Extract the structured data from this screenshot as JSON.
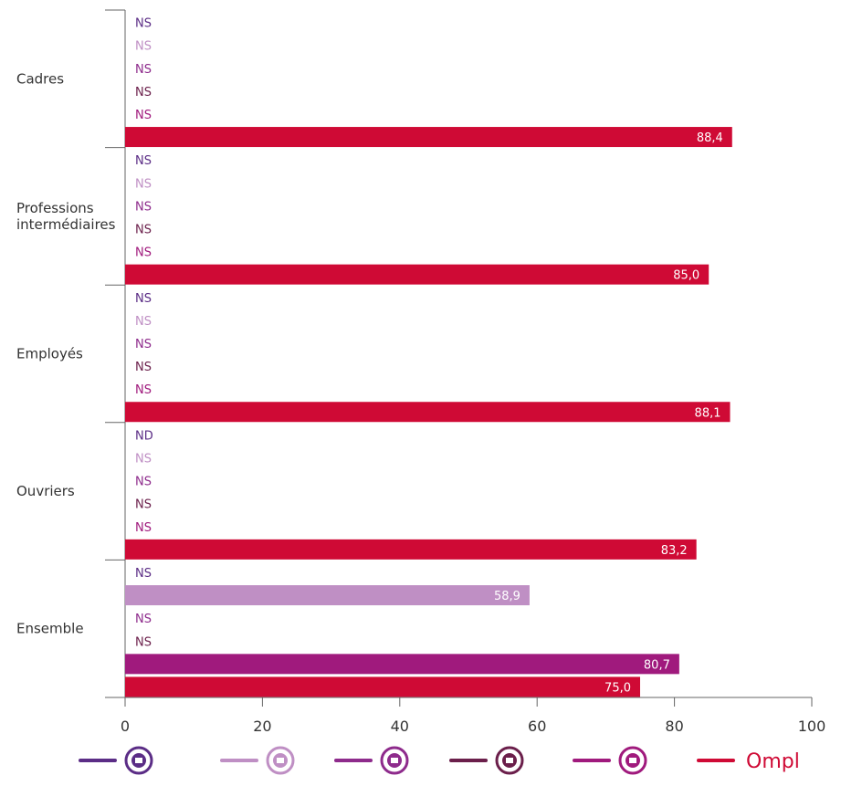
{
  "chart_data": {
    "type": "bar",
    "orientation": "horizontal",
    "xlim": [
      0,
      100
    ],
    "xticks": [
      "0",
      "20",
      "40",
      "60",
      "80",
      "100"
    ],
    "categories": [
      {
        "label": [
          "Cadres"
        ],
        "bars": [
          {
            "series": 0,
            "value": null,
            "text": "NS"
          },
          {
            "series": 1,
            "value": null,
            "text": "NS"
          },
          {
            "series": 2,
            "value": null,
            "text": "NS"
          },
          {
            "series": 3,
            "value": null,
            "text": "NS"
          },
          {
            "series": 4,
            "value": null,
            "text": "NS"
          },
          {
            "series": 5,
            "value": 88.4,
            "text": "88,4"
          }
        ]
      },
      {
        "label": [
          "Professions",
          "intermédiaires"
        ],
        "bars": [
          {
            "series": 0,
            "value": null,
            "text": "NS"
          },
          {
            "series": 1,
            "value": null,
            "text": "NS"
          },
          {
            "series": 2,
            "value": null,
            "text": "NS"
          },
          {
            "series": 3,
            "value": null,
            "text": "NS"
          },
          {
            "series": 4,
            "value": null,
            "text": "NS"
          },
          {
            "series": 5,
            "value": 85.0,
            "text": "85,0"
          }
        ]
      },
      {
        "label": [
          "Employés"
        ],
        "bars": [
          {
            "series": 0,
            "value": null,
            "text": "NS"
          },
          {
            "series": 1,
            "value": null,
            "text": "NS"
          },
          {
            "series": 2,
            "value": null,
            "text": "NS"
          },
          {
            "series": 3,
            "value": null,
            "text": "NS"
          },
          {
            "series": 4,
            "value": null,
            "text": "NS"
          },
          {
            "series": 5,
            "value": 88.1,
            "text": "88,1"
          }
        ]
      },
      {
        "label": [
          "Ouvriers"
        ],
        "bars": [
          {
            "series": 0,
            "value": null,
            "text": "ND"
          },
          {
            "series": 1,
            "value": null,
            "text": "NS"
          },
          {
            "series": 2,
            "value": null,
            "text": "NS"
          },
          {
            "series": 3,
            "value": null,
            "text": "NS"
          },
          {
            "series": 4,
            "value": null,
            "text": "NS"
          },
          {
            "series": 5,
            "value": 83.2,
            "text": "83,2"
          }
        ]
      },
      {
        "label": [
          "Ensemble"
        ],
        "bars": [
          {
            "series": 0,
            "value": null,
            "text": "NS"
          },
          {
            "series": 1,
            "value": 58.9,
            "text": "58,9"
          },
          {
            "series": 2,
            "value": null,
            "text": "NS"
          },
          {
            "series": 3,
            "value": null,
            "text": "NS"
          },
          {
            "series": 4,
            "value": 80.7,
            "text": "80,7"
          },
          {
            "series": 5,
            "value": 75.0,
            "text": "75,0"
          }
        ]
      }
    ],
    "series": [
      {
        "color": "#5b2d86",
        "icon": "bank-icon"
      },
      {
        "color": "#bf8fc4",
        "icon": "person-icon"
      },
      {
        "color": "#8e2b8c",
        "icon": "gavel-icon"
      },
      {
        "color": "#6b1f4b",
        "icon": "microscope-icon"
      },
      {
        "color": "#a01a7d",
        "icon": "scales-icon"
      },
      {
        "color": "#cf0a35",
        "icon": "ompl-logo"
      }
    ],
    "legend_position": "bottom",
    "legend_logo_text": "Ompl"
  }
}
